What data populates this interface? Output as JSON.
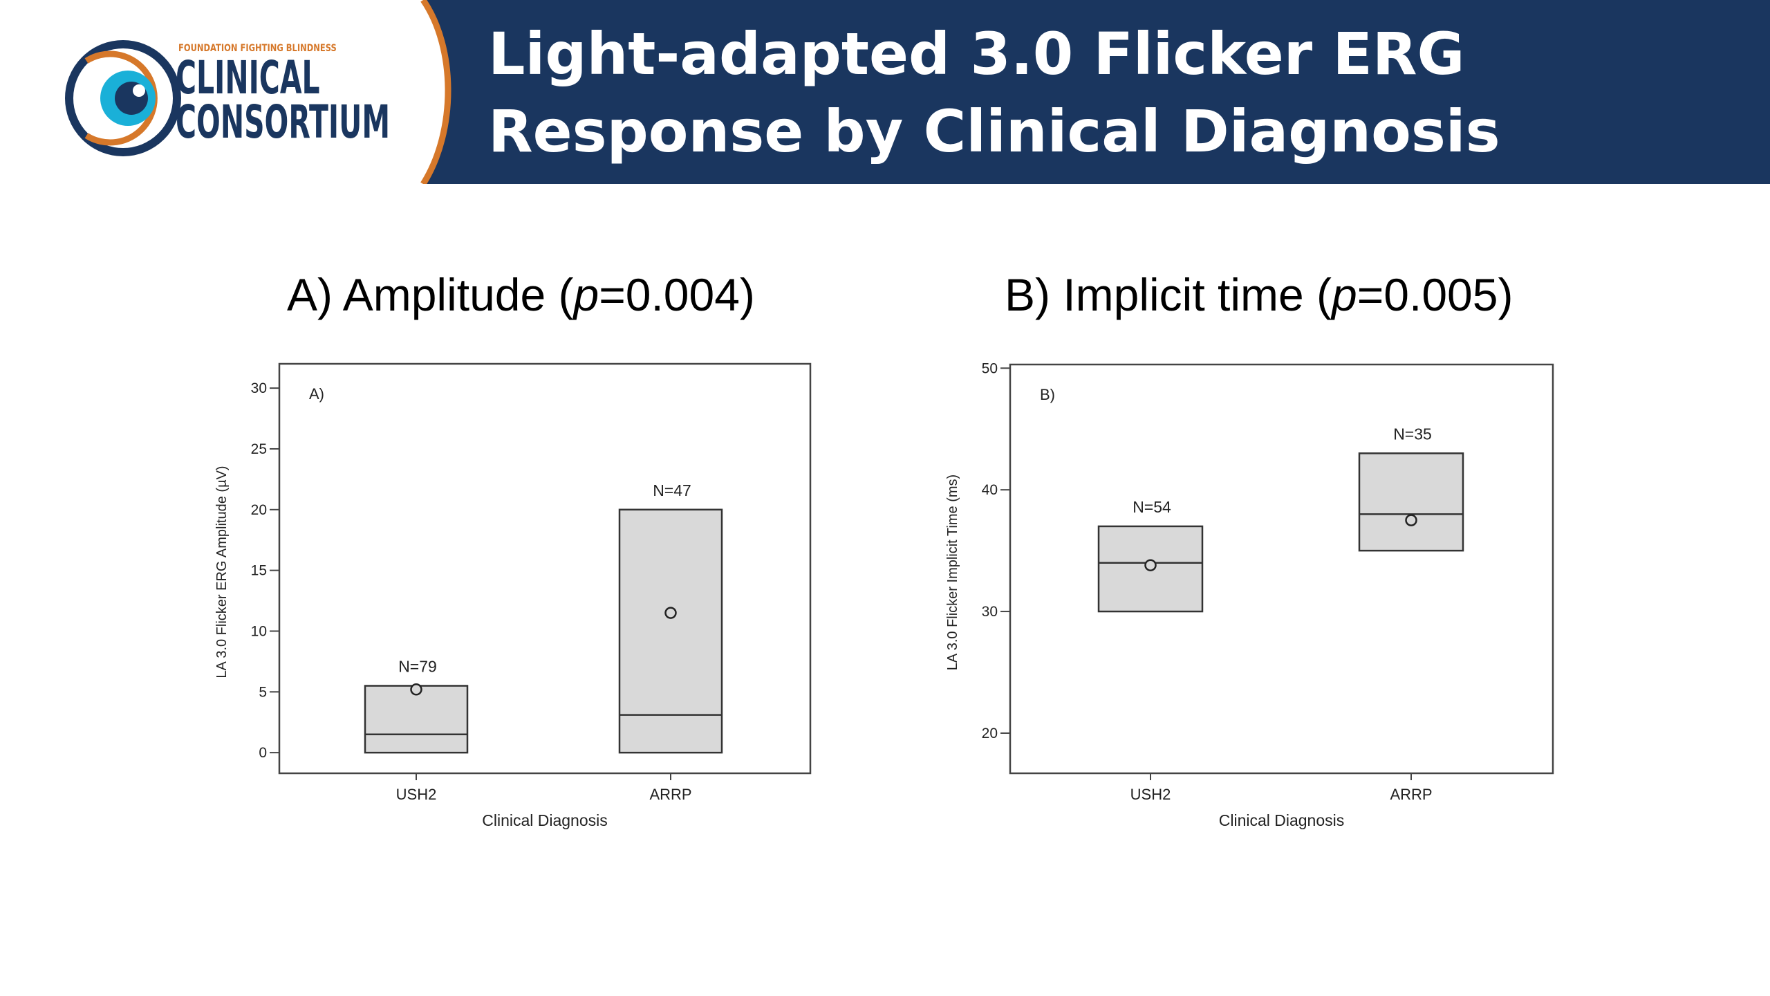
{
  "header": {
    "logo": {
      "org_line": "FOUNDATION FIGHTING BLINDNESS",
      "line1": "CLINICAL",
      "line2": "CONSORTIUM"
    },
    "title_line1": "Light-adapted 3.0 Flicker ERG",
    "title_line2": "Response by Clinical Diagnosis"
  },
  "panels": [
    {
      "title_prefix": "A) Amplitude (",
      "title_p": "p",
      "title_suffix": "=0.004)"
    },
    {
      "title_prefix": "B) Implicit time (",
      "title_p": "p",
      "title_suffix": "=0.005)"
    }
  ],
  "colors": {
    "header_bg": "#1a365f",
    "accent_orange": "#d6782a",
    "eye_cyan": "#1ab0d8",
    "box_fill": "#d9d9d9"
  },
  "chart_data": [
    {
      "type": "box",
      "panel_label": "A)",
      "xlabel": "Clinical Diagnosis",
      "ylabel": "LA 3.0 Flicker ERG Amplitude (µV)",
      "ylim": [
        -1.7,
        32
      ],
      "yticks": [
        0,
        5,
        10,
        15,
        20,
        25,
        30
      ],
      "categories": [
        "USH2",
        "ARRP"
      ],
      "boxes": [
        {
          "category": "USH2",
          "n_label": "N=79",
          "lower": 0,
          "median": 1.5,
          "upper": 5.5,
          "mean": 5.2
        },
        {
          "category": "ARRP",
          "n_label": "N=47",
          "lower": 0,
          "median": 3.1,
          "upper": 20,
          "mean": 11.5
        }
      ]
    },
    {
      "type": "box",
      "panel_label": "B)",
      "xlabel": "Clinical Diagnosis",
      "ylabel": "LA 3.0 Flicker Implicit Time (ms)",
      "ylim": [
        16.7,
        50.3
      ],
      "yticks": [
        20,
        30,
        40,
        50
      ],
      "categories": [
        "USH2",
        "ARRP"
      ],
      "boxes": [
        {
          "category": "USH2",
          "n_label": "N=54",
          "lower": 30,
          "median": 34,
          "upper": 37,
          "mean": 33.8
        },
        {
          "category": "ARRP",
          "n_label": "N=35",
          "lower": 35,
          "median": 38,
          "upper": 43,
          "mean": 37.5
        }
      ]
    }
  ]
}
